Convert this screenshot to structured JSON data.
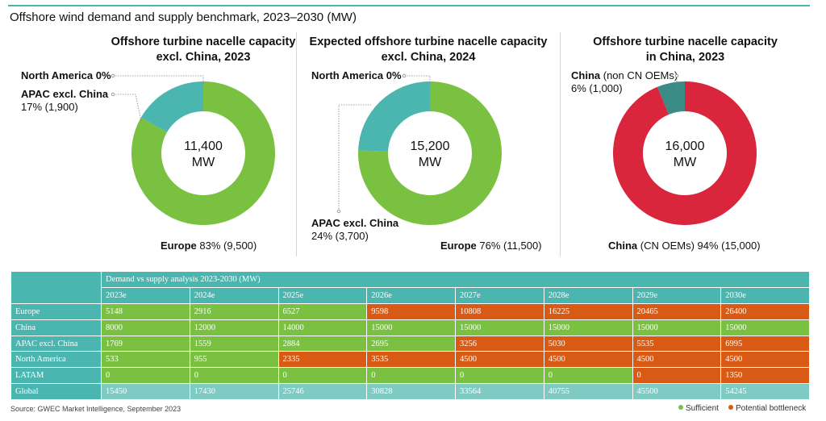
{
  "title": "Offshore wind demand and supply benchmark, 2023–2030 (MW)",
  "colors": {
    "green": "#7ac142",
    "teal": "#4bb6b0",
    "red": "#d9263c",
    "dark_teal": "#3a8a86",
    "orange": "#d85a14"
  },
  "chart_data": [
    {
      "type": "pie",
      "title_line1": "Offshore turbine nacelle capacity",
      "title_line2": "excl. China, 2023",
      "center_line1": "11,400",
      "center_line2": "MW",
      "slices": [
        {
          "name": "Europe",
          "value": 9500,
          "color": "#7ac142"
        },
        {
          "name": "APAC excl. China",
          "value": 1900,
          "color": "#4bb6b0"
        },
        {
          "name": "North America",
          "value": 0,
          "color": "#4bb6b0"
        }
      ],
      "labels": {
        "north_america": "North America 0%",
        "apac_name": "APAC excl. China",
        "apac_value": "17% (1,900)",
        "europe_name": "Europe",
        "europe_value": "83% (9,500)"
      }
    },
    {
      "type": "pie",
      "title_line1": "Expected offshore turbine nacelle capacity",
      "title_line2": "excl. China, 2024",
      "center_line1": "15,200",
      "center_line2": "MW",
      "slices": [
        {
          "name": "Europe",
          "value": 11500,
          "color": "#7ac142"
        },
        {
          "name": "APAC excl. China",
          "value": 3700,
          "color": "#4bb6b0"
        },
        {
          "name": "North America",
          "value": 0,
          "color": "#4bb6b0"
        }
      ],
      "labels": {
        "north_america": "North America 0%",
        "apac_name": "APAC excl. China",
        "apac_value": "24% (3,700)",
        "europe_name": "Europe",
        "europe_value": "76% (11,500)"
      }
    },
    {
      "type": "pie",
      "title_line1": "Offshore turbine nacelle capacity",
      "title_line2": "in China, 2023",
      "center_line1": "16,000",
      "center_line2": "MW",
      "slices": [
        {
          "name": "China (CN OEMs)",
          "value": 15000,
          "color": "#d9263c"
        },
        {
          "name": "China (non CN OEMs)",
          "value": 1000,
          "color": "#3a8a86"
        }
      ],
      "labels": {
        "non_cn_bold": "China",
        "non_cn_rest": " (non CN OEMs)",
        "non_cn_value": "6% (1,000)",
        "cn_bold": "China",
        "cn_rest": " (CN OEMs) 94% (15,000)"
      }
    },
    {
      "type": "table",
      "header": "Demand vs supply analysis 2023-2030 (MW)",
      "years": [
        "2023e",
        "2024e",
        "2025e",
        "2026e",
        "2027e",
        "2028e",
        "2029e",
        "2030e"
      ],
      "rows": [
        {
          "name": "Europe",
          "values": [
            5148,
            2916,
            6527,
            9598,
            10808,
            16225,
            20465,
            26400
          ],
          "status": [
            "s",
            "s",
            "s",
            "b",
            "b",
            "b",
            "b",
            "b"
          ]
        },
        {
          "name": "China",
          "values": [
            8000,
            12000,
            14000,
            15000,
            15000,
            15000,
            15000,
            15000
          ],
          "status": [
            "s",
            "s",
            "s",
            "s",
            "s",
            "s",
            "s",
            "s"
          ]
        },
        {
          "name": "APAC excl. China",
          "values": [
            1769,
            1559,
            2884,
            2695,
            3256,
            5030,
            5535,
            6995
          ],
          "status": [
            "s",
            "s",
            "s",
            "s",
            "b",
            "b",
            "b",
            "b"
          ]
        },
        {
          "name": "North America",
          "values": [
            533,
            955,
            2335,
            3535,
            4500,
            4500,
            4500,
            4500
          ],
          "status": [
            "s",
            "s",
            "b",
            "b",
            "b",
            "b",
            "b",
            "b"
          ]
        },
        {
          "name": "LATAM",
          "values": [
            0,
            0,
            0,
            0,
            0,
            0,
            0,
            1350
          ],
          "status": [
            "s",
            "s",
            "s",
            "s",
            "s",
            "s",
            "b",
            "b"
          ]
        },
        {
          "name": "Global",
          "values": [
            15450,
            17430,
            25746,
            30828,
            33564,
            40755,
            45500,
            54245
          ],
          "status": [
            "t",
            "t",
            "t",
            "t",
            "t",
            "t",
            "t",
            "t"
          ]
        }
      ]
    }
  ],
  "source": "Source: GWEC Market Intelligence, September 2023",
  "legend": {
    "sufficient": "Sufficient",
    "bottleneck": "Potential bottleneck"
  }
}
